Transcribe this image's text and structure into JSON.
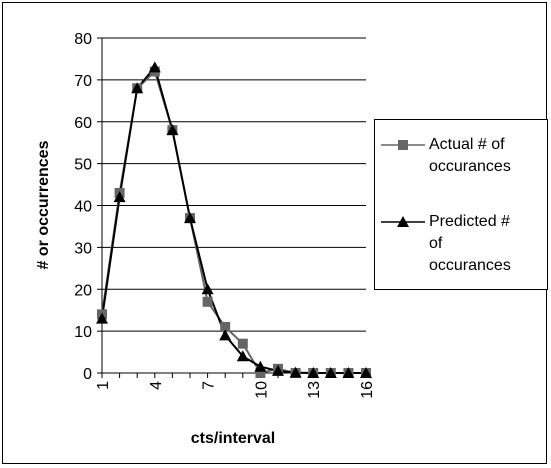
{
  "chart_data": {
    "type": "line",
    "title": "",
    "xlabel": "cts/interval",
    "ylabel": "# or occurrences",
    "ylim": [
      0,
      80
    ],
    "y_ticks": [
      "0",
      "10",
      "20",
      "30",
      "40",
      "50",
      "60",
      "70",
      "80"
    ],
    "x_tick_labels": [
      "1",
      "4",
      "7",
      "10",
      "13",
      "16"
    ],
    "x": [
      1,
      2,
      3,
      4,
      5,
      6,
      7,
      8,
      9,
      10,
      11,
      12,
      13,
      14,
      15,
      16
    ],
    "grid": "horizontal",
    "legend_position": "right",
    "series": [
      {
        "name": "Actual # of occurances",
        "name_lines": [
          "Actual # of",
          "occurances"
        ],
        "marker": "square",
        "color": "#666666",
        "values": [
          14,
          43,
          68,
          72,
          58,
          37,
          17,
          11,
          7,
          0,
          1,
          0,
          0,
          0,
          0,
          0
        ]
      },
      {
        "name": "Predicted # of occurances",
        "name_lines": [
          "Predicted #",
          "of",
          "occurances"
        ],
        "marker": "triangle",
        "color": "#000000",
        "values": [
          13,
          42,
          68,
          73,
          58,
          37,
          20,
          9,
          4,
          1.5,
          0.5,
          0.1,
          0,
          0,
          0,
          0
        ]
      }
    ]
  }
}
